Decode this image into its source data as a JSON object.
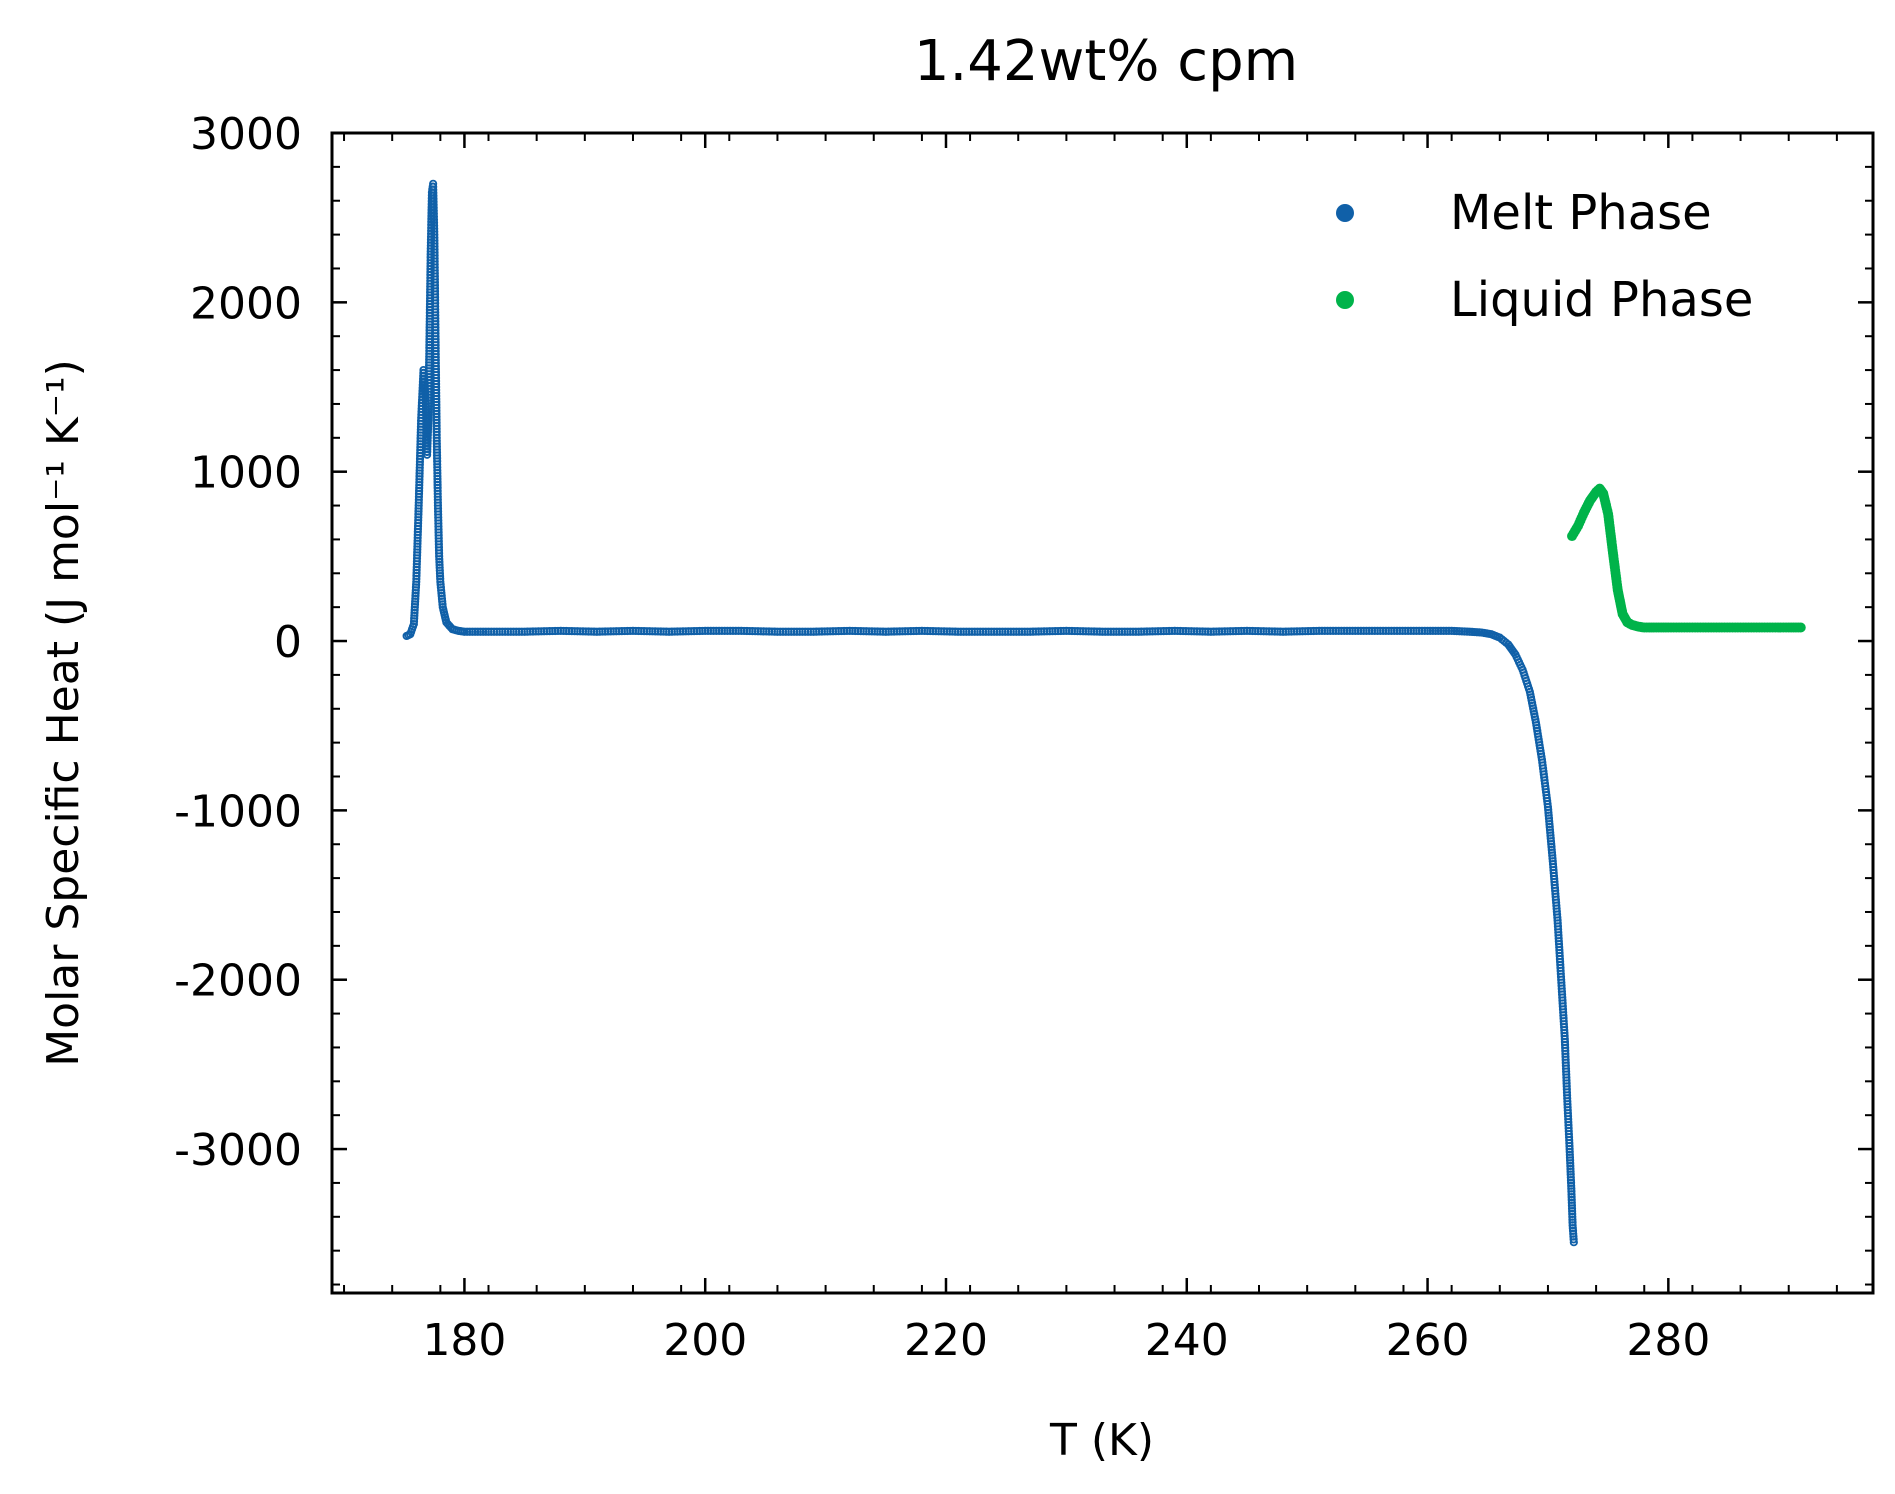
{
  "chart_data": {
    "type": "scatter",
    "title": "1.42wt% cpm",
    "xlabel": "T (K)",
    "ylabel": "Molar Specific Heat (J mol⁻¹ K⁻¹)",
    "xlim": [
      169,
      297
    ],
    "ylim": [
      -3850,
      3000
    ],
    "x_ticks": [
      180,
      200,
      220,
      240,
      260,
      280
    ],
    "x_tick_labels": [
      "180",
      "200",
      "220",
      "240",
      "260",
      "280"
    ],
    "y_ticks": [
      3000,
      2000,
      1000,
      0,
      -1000,
      -2000,
      -3000
    ],
    "y_tick_labels": [
      "3000",
      "2000",
      "1000",
      "0",
      "-1000",
      "-2000",
      "-3000"
    ],
    "grid": false,
    "legend_position": "top-right",
    "series": [
      {
        "name": "Melt Phase",
        "color": "#1060a8",
        "marker": "hollow-circle",
        "x": [
          175.2,
          175.5,
          175.8,
          176.0,
          176.2,
          176.4,
          176.6,
          176.8,
          176.9,
          177.0,
          177.1,
          177.2,
          177.3,
          177.4,
          177.5,
          177.6,
          177.7,
          177.8,
          177.9,
          178.0,
          178.2,
          178.5,
          179.0,
          179.5,
          180.0,
          182,
          185,
          188,
          191,
          194,
          197,
          200,
          203,
          206,
          209,
          212,
          215,
          218,
          221,
          224,
          227,
          230,
          233,
          236,
          239,
          242,
          245,
          248,
          251,
          254,
          257,
          260,
          262,
          263.5,
          264.5,
          265.3,
          266.0,
          266.7,
          267.3,
          267.9,
          268.5,
          269.0,
          269.5,
          270.0,
          270.4,
          270.8,
          271.1,
          271.4,
          271.6,
          271.8,
          271.95,
          272.05,
          272.15
        ],
        "y": [
          30,
          40,
          100,
          350,
          800,
          1300,
          1600,
          1400,
          1100,
          1300,
          1800,
          2300,
          2650,
          2700,
          2400,
          1800,
          1200,
          800,
          500,
          350,
          200,
          110,
          70,
          60,
          55,
          55,
          55,
          60,
          55,
          60,
          55,
          60,
          60,
          55,
          55,
          60,
          55,
          60,
          55,
          55,
          55,
          60,
          55,
          55,
          60,
          55,
          60,
          55,
          60,
          60,
          60,
          60,
          60,
          55,
          50,
          40,
          20,
          -20,
          -80,
          -170,
          -300,
          -480,
          -700,
          -980,
          -1300,
          -1650,
          -2000,
          -2350,
          -2700,
          -3000,
          -3250,
          -3450,
          -3550
        ]
      },
      {
        "name": "Liquid Phase",
        "color": "#00b34a",
        "marker": "filled-circle",
        "x": [
          272.0,
          272.5,
          273.0,
          273.5,
          274.0,
          274.3,
          274.6,
          275.0,
          275.4,
          275.8,
          276.2,
          276.6,
          277.0,
          277.5,
          278.0,
          279,
          280,
          282,
          284,
          286,
          288,
          290,
          291
        ],
        "y": [
          620,
          680,
          760,
          830,
          880,
          900,
          870,
          750,
          520,
          300,
          160,
          110,
          95,
          85,
          80,
          80,
          80,
          80,
          80,
          80,
          80,
          80,
          80
        ]
      }
    ]
  }
}
